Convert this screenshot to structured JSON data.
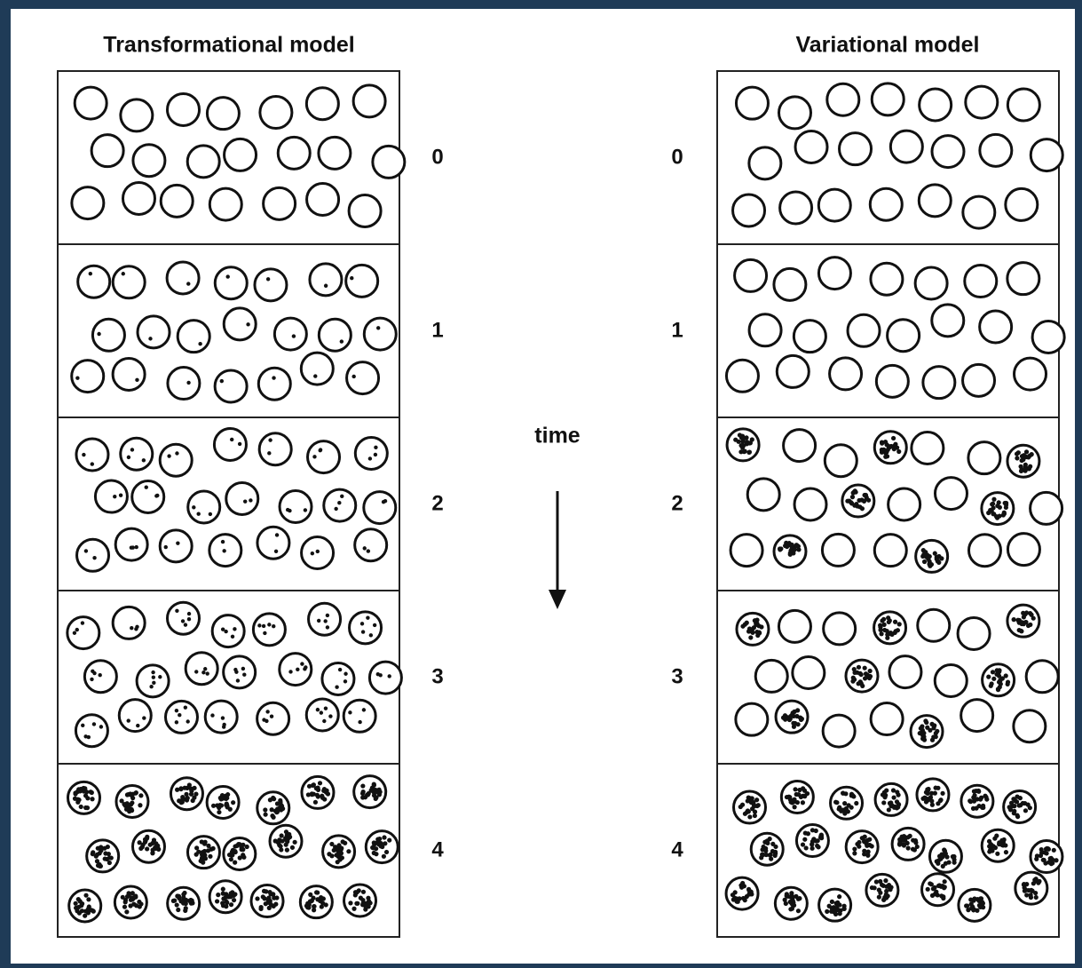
{
  "left_title": "Transformational model",
  "right_title": "Variational model",
  "time_label": "time",
  "steps": [
    "0",
    "1",
    "2",
    "3",
    "4"
  ]
}
